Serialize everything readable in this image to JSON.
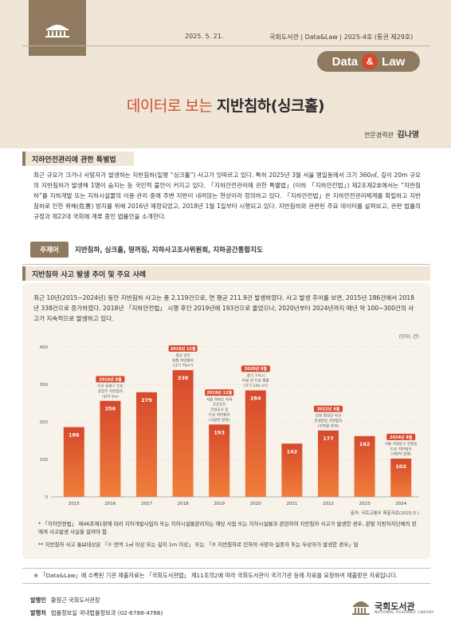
{
  "header": {
    "date": "2025. 5. 21.",
    "publisher": "국회도서관",
    "series": "Data&Law",
    "issue": "2025-4호 (통권 제29호)",
    "badge_left": "Data",
    "badge_amp": "&",
    "badge_right": "Law",
    "title_prefix": "데이터로 보는",
    "title_main": "지반침하(싱크홀)",
    "author_role": "전문경력관",
    "author_name": "김나영"
  },
  "section1": {
    "heading": "지하안전관리에 관한 특별법",
    "body": "최근 규모가 크거나 사망자가 발생하는 지반침하(일명 “싱크홀”) 사고가 잇따르고 있다. 특히 2025년 3월 서울 명일동에서 크기 360㎡, 깊이 20m 규모의 지반침하가 발생해 1명이 숨지는 등 국민적 불안이 커지고 있다. 「지하안전관리에 관한 특별법」(이하 「지하안전법」) 제2조제2호에서는 “지반침하”를 지하개발 또는 지하시설물의 이용·관리 중에 주변 지반이 내려앉는 현상이라 정의하고 있다. 「지하안전법」은 지하안전관리체계를 확립하고 지반침하로 인한 위해(危害) 방지를 위해 2016년 제정되었고, 2018년 1월 1일부터 시행되고 있다. 지반침하와 관련된 주요 데이터를 살펴보고, 관련 법률의 규정과 제22대 국회에 계류 중인 법률안을 소개한다."
  },
  "keywords": {
    "label": "주제어",
    "text": "지반침하, 싱크홀, 땅꺼짐, 지하사고조사위원회, 지하공간통합지도"
  },
  "section2": {
    "heading": "지반침하 사고 발생 추이 및 주요 사례",
    "body": "최근 10년(2015~2024년) 동안 지반침하 사고는 총 2,119건으로, 연 평균 211.9건 발생하였다. 사고 발생 추이를 보면, 2015년 186건에서 2018년 338건으로 증가하였다. 2018년 「지하안전법」 시행 후인 2019년에 193건으로 줄었으나, 2020년부터 2024년까지 매년 약 100~300건의 사고가 지속적으로 발생하고 있다.",
    "unit": "(단위: 건)",
    "source": "출처: 국토교통부 제출자료(2025.5.)",
    "note1": "* 「지하안전법」 제46조제1항에 따라 지하개발사업자 또는 지하시설물관리자는 해당 사업 또는 지하시설물과 관련하여 지반침하 사고가 발생한 경우, 관할 지방자치단체의 장에게 사고발생 사실을 알려야 함.",
    "note2": "** 지반침하 사고 통보대상은 「① 면적 1㎡ 이상 또는 깊이 1m 이상」 또는 「② 지반침하로 인하여 사망자·실종자 또는 부상자가 발생한 경우」임"
  },
  "chart_data": {
    "type": "bar",
    "categories": [
      "2015",
      "2016",
      "2017",
      "2018",
      "2019",
      "2020",
      "2021",
      "2022",
      "2023",
      "2024"
    ],
    "values": [
      186,
      256,
      279,
      338,
      193,
      284,
      142,
      177,
      162,
      102
    ],
    "ylim": [
      0,
      400
    ],
    "yticks": [
      0,
      100,
      200,
      300,
      400
    ],
    "grid": true,
    "annotations": [
      {
        "category": "2016",
        "title": "2016년 8월",
        "lines": [
          "부산 동래구 도로",
          "중앙부 지반침하",
          "(깊이 5m)"
        ]
      },
      {
        "category": "2018",
        "title": "2018년 12월",
        "lines": [
          "충남 당진",
          "대형 지반침하",
          "(크기 70m³)"
        ]
      },
      {
        "category": "2019",
        "title": "2019년 12월",
        "lines": [
          "서울 여의도 지하",
          "공공보도",
          "건설공사 중",
          "도로 지반침하",
          "(사망자 발생)"
        ]
      },
      {
        "category": "2020",
        "title": "2020년 8월",
        "lines": [
          "경기 구리시",
          "터널 위 도로 함몰",
          "(크기 240 m³)"
        ]
      },
      {
        "category": "2022",
        "title": "2022년 8월",
        "lines": [
          "강원 양양군 낙산",
          "건설현장 지반침하",
          "(건축물 붕괴)"
        ]
      },
      {
        "category": "2024",
        "title": "2024년 8월",
        "lines": [
          "서울 서대문구 연희동",
          "도로 지반침하",
          "(사망자 발생)"
        ]
      }
    ],
    "colors": {
      "bar_top": "#d6492c",
      "bar_bottom": "#f07e3a",
      "label_box": "#d6492c",
      "annotation_text": "#555555"
    }
  },
  "footer": {
    "note": "※ 「Data&Law」에 수록된 기관 제출자료는 「국회도서관법」 제11조의2에 따라 국회도서관이 국가기관 등에 자료를 요청하여 제출받은 자료입니다.",
    "publisher_label": "발행인",
    "publisher_value": "황정근 국회도서관장",
    "issuer_label": "발행처",
    "issuer_value": "법률정보실 국내법률정보과 (02-6788-4766)",
    "logo_name": "국회도서관",
    "logo_en": "NATIONAL ASSEMBLY LIBRARY"
  }
}
